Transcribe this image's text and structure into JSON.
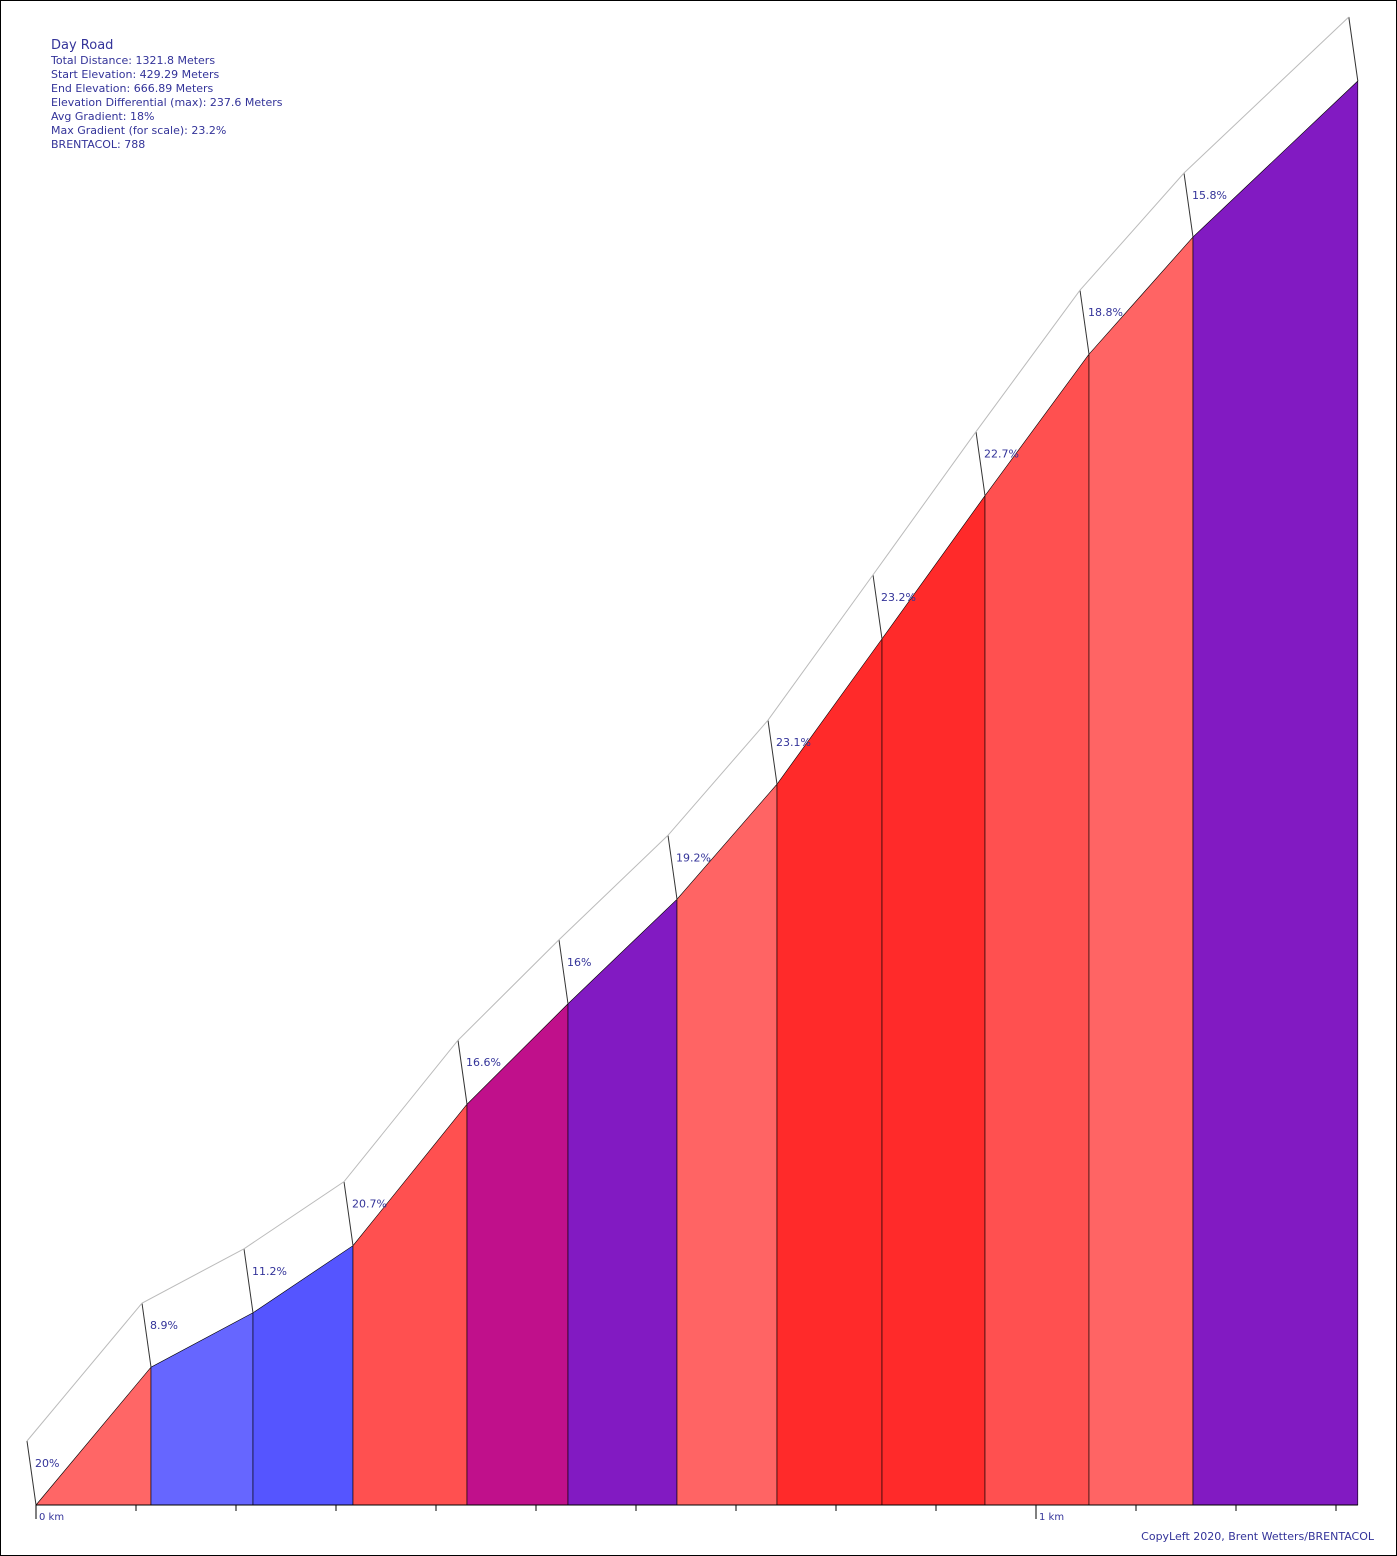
{
  "summary": {
    "title": "Day Road",
    "total_distance": "Total Distance: 1321.8 Meters",
    "start_elevation": "Start Elevation: 429.29 Meters",
    "end_elevation": "End Elevation: 666.89 Meters",
    "elevation_differential": "Elevation Differential (max): 237.6 Meters",
    "avg_gradient": "Avg Gradient: 18%",
    "max_gradient": "Max Gradient (for scale): 23.2%",
    "brentacol": "BRENTACOL: 788"
  },
  "footer": {
    "copyleft": "CopyLeft 2020, Brent Wetters/BRENTACOL"
  },
  "chart_data": {
    "type": "area",
    "xlabel": "",
    "ylabel": "",
    "x_unit": "km",
    "x_range_km": [
      0,
      1.3218
    ],
    "y_range_m": [
      429.29,
      666.89
    ],
    "x_tick_labels": [
      {
        "km": 0,
        "label": "0 km"
      },
      {
        "km": 1,
        "label": "1 km"
      }
    ],
    "segments": [
      {
        "start_km": 0.0,
        "end_km": 0.115,
        "gradient": 20,
        "label": "20%",
        "color": "#ff6666"
      },
      {
        "start_km": 0.115,
        "end_km": 0.217,
        "gradient": 8.9,
        "label": "8.9%",
        "color": "#6666ff"
      },
      {
        "start_km": 0.217,
        "end_km": 0.317,
        "gradient": 11.2,
        "label": "11.2%",
        "color": "#5555ff"
      },
      {
        "start_km": 0.317,
        "end_km": 0.431,
        "gradient": 20.7,
        "label": "20.7%",
        "color": "#ff5050"
      },
      {
        "start_km": 0.431,
        "end_km": 0.532,
        "gradient": 16.6,
        "label": "16.6%",
        "color": "#c0108b"
      },
      {
        "start_km": 0.532,
        "end_km": 0.641,
        "gradient": 16,
        "label": "16%",
        "color": "#821ac2"
      },
      {
        "start_km": 0.641,
        "end_km": 0.741,
        "gradient": 19.2,
        "label": "19.2%",
        "color": "#ff6464"
      },
      {
        "start_km": 0.741,
        "end_km": 0.846,
        "gradient": 23.1,
        "label": "23.1%",
        "color": "#ff2a2a"
      },
      {
        "start_km": 0.846,
        "end_km": 0.949,
        "gradient": 23.2,
        "label": "23.2%",
        "color": "#ff2a2a"
      },
      {
        "start_km": 0.949,
        "end_km": 1.053,
        "gradient": 22.7,
        "label": "22.7%",
        "color": "#ff5050"
      },
      {
        "start_km": 1.053,
        "end_km": 1.157,
        "gradient": 18.8,
        "label": "18.8%",
        "color": "#ff6464"
      },
      {
        "start_km": 1.157,
        "end_km": 1.3218,
        "gradient": 15.8,
        "label": "15.8%",
        "color": "#821ac2"
      }
    ]
  }
}
